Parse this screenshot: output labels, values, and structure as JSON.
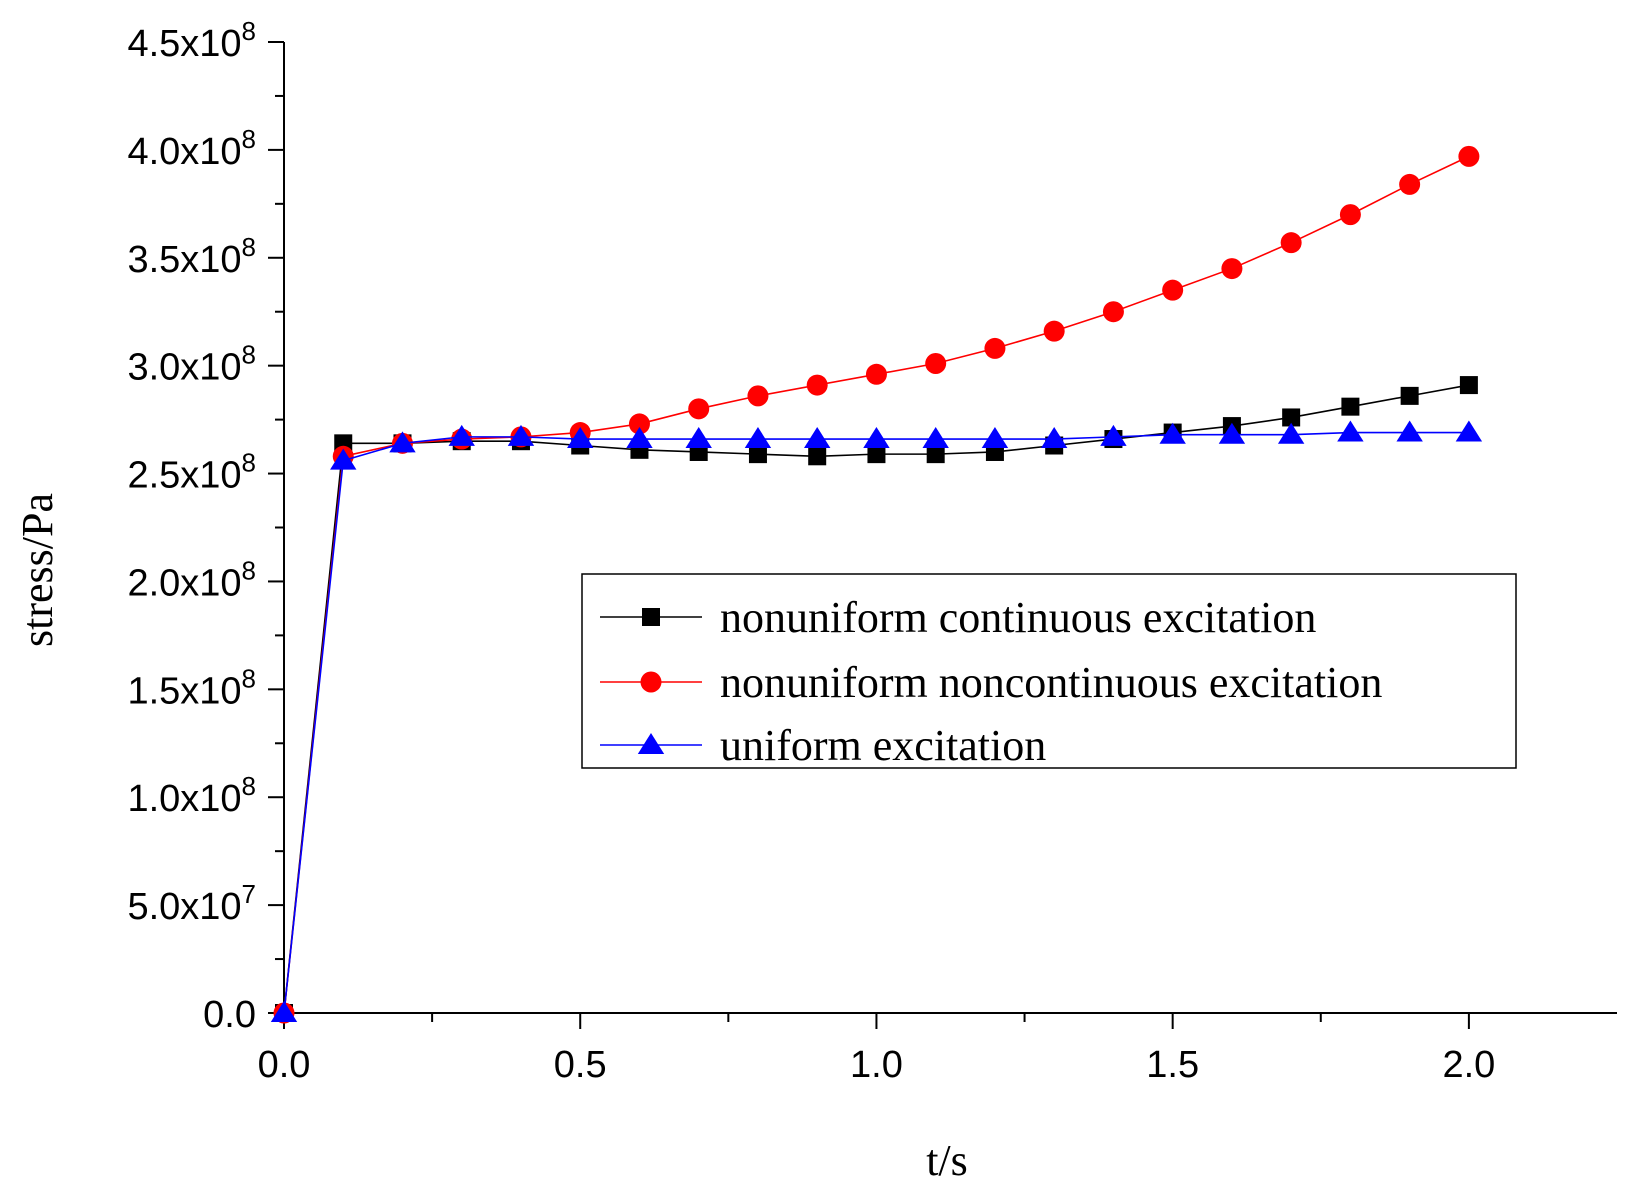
{
  "chart_data": {
    "type": "line",
    "title": "",
    "xlabel": "t/s",
    "ylabel": "stress/Pa",
    "xlim": [
      0,
      2.25
    ],
    "ylim": [
      0,
      450000000
    ],
    "x": [
      0,
      0.1,
      0.2,
      0.3,
      0.4,
      0.5,
      0.6,
      0.7,
      0.8,
      0.9,
      1.0,
      1.1,
      1.2,
      1.3,
      1.4,
      1.5,
      1.6,
      1.7,
      1.8,
      1.9,
      2.0
    ],
    "x_ticks": [
      {
        "value": 0.0,
        "label": "0.0"
      },
      {
        "value": 0.5,
        "label": "0.5"
      },
      {
        "value": 1.0,
        "label": "1.0"
      },
      {
        "value": 1.5,
        "label": "1.5"
      },
      {
        "value": 2.0,
        "label": "2.0"
      }
    ],
    "y_ticks": [
      {
        "value": 0,
        "mant": "0.0",
        "exp": ""
      },
      {
        "value": 50000000,
        "mant": "5.0x10",
        "exp": "7"
      },
      {
        "value": 100000000,
        "mant": "1.0x10",
        "exp": "8"
      },
      {
        "value": 150000000,
        "mant": "1.5x10",
        "exp": "8"
      },
      {
        "value": 200000000,
        "mant": "2.0x10",
        "exp": "8"
      },
      {
        "value": 250000000,
        "mant": "2.5x10",
        "exp": "8"
      },
      {
        "value": 300000000,
        "mant": "3.0x10",
        "exp": "8"
      },
      {
        "value": 350000000,
        "mant": "3.5x10",
        "exp": "8"
      },
      {
        "value": 400000000,
        "mant": "4.0x10",
        "exp": "8"
      },
      {
        "value": 450000000,
        "mant": "4.5x10",
        "exp": "8"
      }
    ],
    "legend_position": "center-right",
    "grid": false,
    "series": [
      {
        "name": "nonuniform continuous excitation",
        "color": "#000000",
        "marker": "square",
        "values": [
          0,
          264000000,
          264000000,
          265000000,
          265000000,
          263000000,
          261000000,
          260000000,
          259000000,
          258000000,
          259000000,
          259000000,
          260000000,
          263000000,
          266000000,
          269000000,
          272000000,
          276000000,
          281000000,
          286000000,
          291000000
        ]
      },
      {
        "name": "nonuniform noncontinuous excitation",
        "color": "#ff0000",
        "marker": "circle",
        "values": [
          0,
          258000000,
          264000000,
          266000000,
          267000000,
          269000000,
          273000000,
          280000000,
          286000000,
          291000000,
          296000000,
          301000000,
          308000000,
          316000000,
          325000000,
          335000000,
          345000000,
          357000000,
          370000000,
          384000000,
          397000000
        ]
      },
      {
        "name": "uniform excitation",
        "color": "#0000ff",
        "marker": "triangle",
        "values": [
          0,
          256000000,
          264000000,
          267000000,
          267000000,
          266000000,
          266000000,
          266000000,
          266000000,
          266000000,
          266000000,
          266000000,
          266000000,
          266000000,
          267000000,
          268000000,
          268000000,
          268000000,
          269000000,
          269000000,
          269000000
        ]
      }
    ]
  }
}
